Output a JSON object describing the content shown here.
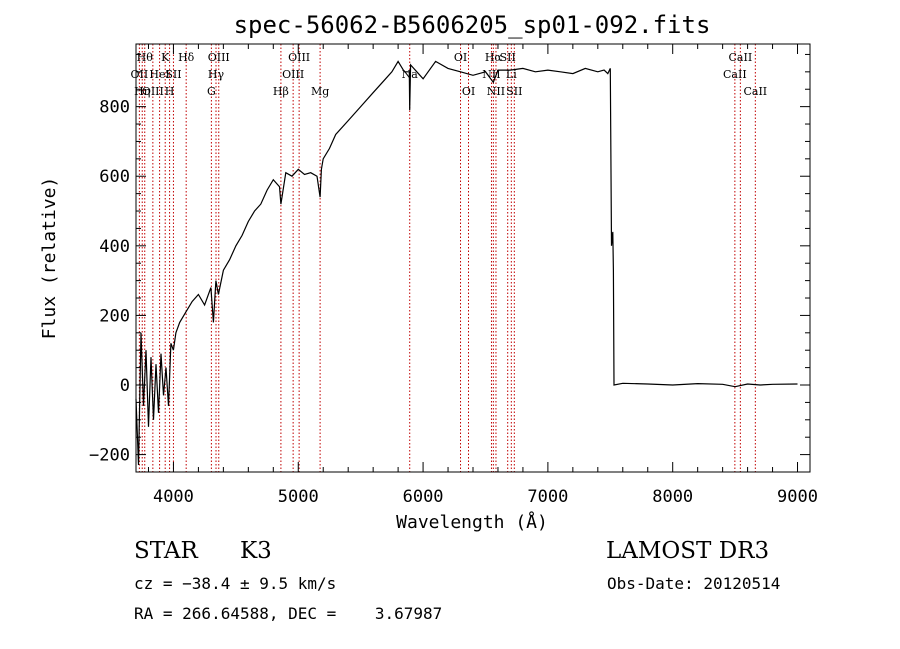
{
  "chart_data": {
    "type": "line",
    "title": "spec-56062-B5606205_sp01-092.fits",
    "xlabel": "Wavelength (Å)",
    "ylabel": "Flux (relative)",
    "xlim": [
      3700,
      9100
    ],
    "ylim": [
      -250,
      980
    ],
    "grid": false,
    "xticks": [
      4000,
      5000,
      6000,
      7000,
      8000,
      9000
    ],
    "xtick_labels": [
      "4000",
      "5000",
      "6000",
      "7000",
      "8000",
      "9000"
    ],
    "yticks": [
      -200,
      0,
      200,
      400,
      600,
      800
    ],
    "ytick_labels": [
      "−200",
      "0",
      "200",
      "400",
      "600",
      "800"
    ],
    "series": [
      {
        "name": "spectrum",
        "x": [
          3700,
          3720,
          3740,
          3760,
          3780,
          3800,
          3820,
          3840,
          3860,
          3880,
          3900,
          3920,
          3940,
          3960,
          3980,
          4000,
          4020,
          4050,
          4100,
          4150,
          4200,
          4250,
          4300,
          4320,
          4340,
          4360,
          4400,
          4450,
          4500,
          4550,
          4600,
          4650,
          4700,
          4750,
          4800,
          4850,
          4861,
          4900,
          4950,
          5000,
          5050,
          5100,
          5150,
          5175,
          5185,
          5200,
          5250,
          5300,
          5400,
          5500,
          5600,
          5700,
          5750,
          5800,
          5850,
          5890,
          5893,
          5900,
          5950,
          6000,
          6100,
          6200,
          6300,
          6400,
          6500,
          6563,
          6600,
          6700,
          6800,
          6900,
          7000,
          7100,
          7200,
          7300,
          7400,
          7450,
          7480,
          7500,
          7510,
          7520,
          7525,
          7530,
          7600,
          7800,
          8000,
          8200,
          8400,
          8500,
          8600,
          8700,
          8800,
          9000
        ],
        "values": [
          -40,
          -230,
          150,
          -60,
          100,
          -120,
          80,
          -100,
          60,
          -80,
          90,
          -30,
          50,
          -60,
          120,
          100,
          150,
          180,
          210,
          240,
          260,
          230,
          280,
          180,
          300,
          260,
          330,
          360,
          400,
          430,
          470,
          500,
          520,
          560,
          590,
          570,
          520,
          610,
          600,
          620,
          605,
          610,
          600,
          540,
          620,
          650,
          680,
          720,
          760,
          800,
          840,
          880,
          900,
          930,
          900,
          900,
          790,
          920,
          900,
          880,
          930,
          910,
          900,
          890,
          900,
          870,
          905,
          905,
          910,
          900,
          905,
          900,
          895,
          910,
          900,
          905,
          895,
          910,
          400,
          440,
          330,
          0,
          5,
          3,
          0,
          4,
          2,
          -5,
          3,
          0,
          2,
          3
        ]
      }
    ],
    "line_markers": [
      {
        "wavelength": 3727,
        "label": "OII",
        "row": 2
      },
      {
        "wavelength": 3750,
        "label": "Hη",
        "row": 3
      },
      {
        "wavelength": 3770,
        "label": "Hθ",
        "row": 1
      },
      {
        "wavelength": 3835,
        "label": "OIII",
        "row": 3
      },
      {
        "wavelength": 3889,
        "label": "HeI",
        "row": 2
      },
      {
        "wavelength": 3934,
        "label": "K",
        "row": 1
      },
      {
        "wavelength": 3969,
        "label": "H",
        "row": 3
      },
      {
        "wavelength": 4000,
        "label": "SII",
        "row": 2
      },
      {
        "wavelength": 4102,
        "label": "Hδ",
        "row": 1
      },
      {
        "wavelength": 4304,
        "label": "G",
        "row": 3
      },
      {
        "wavelength": 4341,
        "label": "Hγ",
        "row": 2
      },
      {
        "wavelength": 4363,
        "label": "OIII",
        "row": 1
      },
      {
        "wavelength": 4861,
        "label": "Hβ",
        "row": 3
      },
      {
        "wavelength": 4959,
        "label": "OIII",
        "row": 2
      },
      {
        "wavelength": 5007,
        "label": "OIII",
        "row": 1
      },
      {
        "wavelength": 5175,
        "label": "Mg",
        "row": 3
      },
      {
        "wavelength": 5893,
        "label": "Na",
        "row": 2
      },
      {
        "wavelength": 6300,
        "label": "OI",
        "row": 1
      },
      {
        "wavelength": 6364,
        "label": "OI",
        "row": 3
      },
      {
        "wavelength": 6548,
        "label": "NII",
        "row": 2
      },
      {
        "wavelength": 6563,
        "label": "Hα",
        "row": 1
      },
      {
        "wavelength": 6584,
        "label": "NII",
        "row": 3
      },
      {
        "wavelength": 6678,
        "label": "SII",
        "row": 1
      },
      {
        "wavelength": 6707,
        "label": "Li",
        "row": 2
      },
      {
        "wavelength": 6731,
        "label": "SII",
        "row": 3
      },
      {
        "wavelength": 8498,
        "label": "CaII",
        "row": 2
      },
      {
        "wavelength": 8542,
        "label": "CaII",
        "row": 1
      },
      {
        "wavelength": 8662,
        "label": "CaII",
        "row": 3
      }
    ]
  },
  "info": {
    "object_class": "STAR",
    "subclass": "K3",
    "survey": "LAMOST DR3",
    "cz": "cz = −38.4 ± 9.5 km/s",
    "obs_date": "Obs-Date: 20120514",
    "coords": "RA = 266.64588, DEC =    3.67987"
  },
  "colors": {
    "line": "#000000",
    "marker": "#c00000",
    "axis": "#000000",
    "background": "#ffffff"
  }
}
